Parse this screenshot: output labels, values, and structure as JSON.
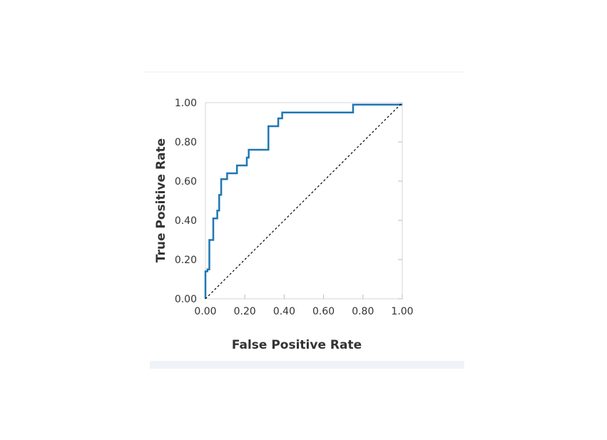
{
  "chart_data": {
    "type": "line",
    "title": "",
    "xlabel": "False Positive Rate",
    "ylabel": "True Positive Rate",
    "xlim": [
      0,
      1
    ],
    "ylim": [
      0,
      1
    ],
    "xticks": [
      "0.00",
      "0.20",
      "0.40",
      "0.60",
      "0.80",
      "1.00"
    ],
    "yticks": [
      "0.00",
      "0.20",
      "0.40",
      "0.60",
      "0.80",
      "1.00"
    ],
    "grid": false,
    "legend": "none",
    "series": [
      {
        "color": "#1f77b4",
        "x": [
          0.0,
          0.0,
          0.01,
          0.01,
          0.02,
          0.02,
          0.04,
          0.04,
          0.06,
          0.06,
          0.07,
          0.07,
          0.08,
          0.08,
          0.11,
          0.11,
          0.16,
          0.16,
          0.21,
          0.21,
          0.22,
          0.22,
          0.32,
          0.32,
          0.37,
          0.37,
          0.39,
          0.39,
          0.75,
          0.75,
          1.0
        ],
        "y": [
          0.0,
          0.14,
          0.14,
          0.15,
          0.15,
          0.3,
          0.3,
          0.41,
          0.41,
          0.45,
          0.45,
          0.53,
          0.53,
          0.61,
          0.61,
          0.64,
          0.64,
          0.68,
          0.68,
          0.72,
          0.72,
          0.76,
          0.76,
          0.88,
          0.88,
          0.92,
          0.92,
          0.95,
          0.95,
          0.99,
          0.99
        ]
      },
      {
        "color": "#000000",
        "dashed": true,
        "x": [
          0,
          1
        ],
        "y": [
          0,
          1
        ]
      }
    ]
  }
}
